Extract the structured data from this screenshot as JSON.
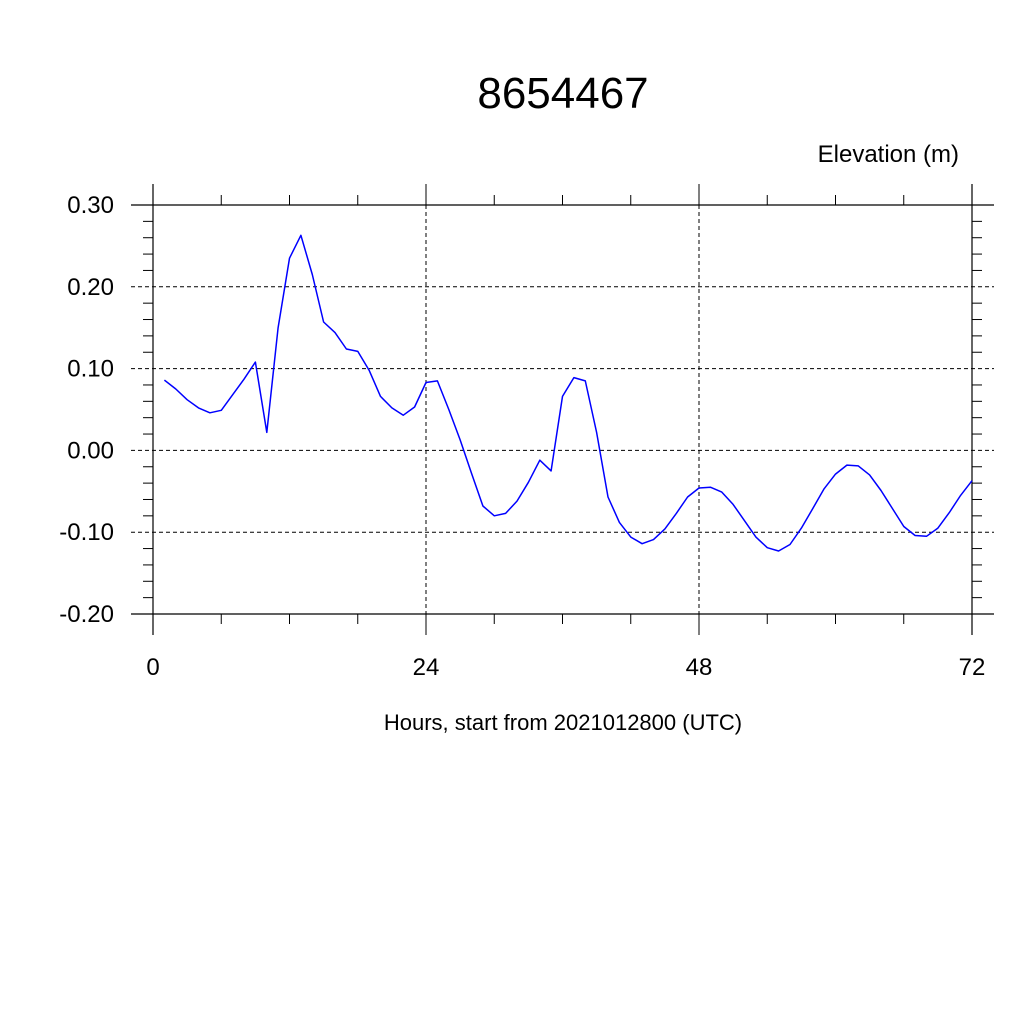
{
  "chart_data": {
    "type": "line",
    "title": "8654467",
    "ylabel": "Elevation (m)",
    "xlabel": "Hours, start from 2021012800 (UTC)",
    "xlim": [
      0,
      72
    ],
    "ylim": [
      -0.2,
      0.3
    ],
    "xticks": [
      0,
      24,
      48,
      72
    ],
    "xtick_labels": [
      "0",
      "24",
      "48",
      "72"
    ],
    "yticks": [
      -0.2,
      -0.1,
      0.0,
      0.1,
      0.2,
      0.3
    ],
    "ytick_labels": [
      "-0.20",
      "-0.10",
      "0.00",
      "0.10",
      "0.20",
      "0.30"
    ],
    "grid": true,
    "series": [
      {
        "color": "#0000ff",
        "x": [
          1,
          2,
          3,
          4,
          5,
          6,
          7,
          8,
          9,
          10,
          11,
          12,
          13,
          14,
          15,
          16,
          17,
          18,
          19,
          20,
          21,
          22,
          23,
          24,
          25,
          26,
          27,
          28,
          29,
          30,
          31,
          32,
          33,
          34,
          35,
          36,
          37,
          38,
          39,
          40,
          41,
          42,
          43,
          44,
          45,
          46,
          47,
          48,
          49,
          50,
          51,
          52,
          53,
          54,
          55,
          56,
          57,
          58,
          59,
          60,
          61,
          62,
          63,
          64,
          65,
          66,
          67,
          68,
          69,
          70,
          71,
          72
        ],
        "y": [
          0.086,
          0.075,
          0.062,
          0.052,
          0.046,
          0.049,
          0.068,
          0.087,
          0.108,
          0.022,
          0.15,
          0.235,
          0.263,
          0.215,
          0.157,
          0.144,
          0.124,
          0.121,
          0.098,
          0.066,
          0.052,
          0.043,
          0.053,
          0.083,
          0.085,
          0.05,
          0.013,
          -0.028,
          -0.068,
          -0.08,
          -0.077,
          -0.062,
          -0.039,
          -0.012,
          -0.025,
          0.066,
          0.089,
          0.085,
          0.022,
          -0.057,
          -0.088,
          -0.106,
          -0.114,
          -0.109,
          -0.096,
          -0.077,
          -0.057,
          -0.046,
          -0.045,
          -0.051,
          -0.066,
          -0.086,
          -0.106,
          -0.119,
          -0.123,
          -0.115,
          -0.095,
          -0.071,
          -0.047,
          -0.029,
          -0.018,
          -0.019,
          -0.03,
          -0.049,
          -0.071,
          -0.093,
          -0.104,
          -0.105,
          -0.095,
          -0.076,
          -0.055,
          -0.037
        ]
      }
    ]
  }
}
